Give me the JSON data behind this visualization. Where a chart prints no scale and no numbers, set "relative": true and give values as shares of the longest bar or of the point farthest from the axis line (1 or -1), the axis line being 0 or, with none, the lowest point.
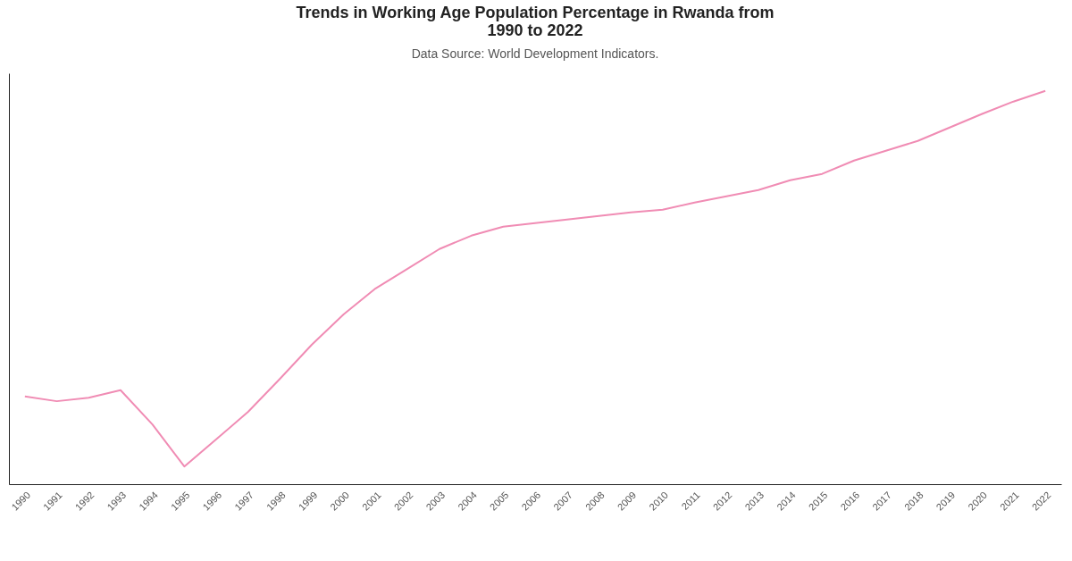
{
  "chart_data": {
    "type": "line",
    "title": "Trends in Working Age Population Percentage in Rwanda from 1990 to 2022",
    "subtitle": "Data Source: World Development Indicators.",
    "relative": true,
    "marker": "none",
    "categories": [
      "1990",
      "1991",
      "1992",
      "1993",
      "1994",
      "1995",
      "1996",
      "1997",
      "1998",
      "1999",
      "2000",
      "2001",
      "2002",
      "2003",
      "2004",
      "2005",
      "2006",
      "2007",
      "2008",
      "2009",
      "2010",
      "2011",
      "2012",
      "2013",
      "2014",
      "2015",
      "2016",
      "2017",
      "2018",
      "2019",
      "2020",
      "2021",
      "2022"
    ],
    "series": [
      {
        "color": "#f08cb4",
        "values": [
          0.223,
          0.211,
          0.22,
          0.239,
          0.152,
          0.045,
          0.114,
          0.184,
          0.268,
          0.355,
          0.432,
          0.498,
          0.548,
          0.598,
          0.632,
          0.655,
          0.664,
          0.673,
          0.682,
          0.691,
          0.698,
          0.716,
          0.732,
          0.748,
          0.773,
          0.789,
          0.823,
          0.848,
          0.873,
          0.907,
          0.941,
          0.973,
          1
        ]
      }
    ]
  }
}
